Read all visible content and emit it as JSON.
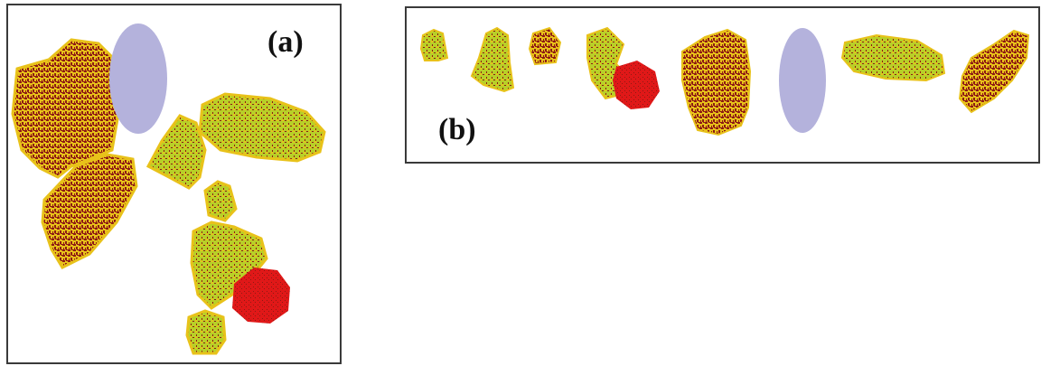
{
  "figure": {
    "panel_a": {
      "label": "(a)"
    },
    "panel_b": {
      "label": "(b)"
    }
  },
  "colors": {
    "yellow": "#e8c21a",
    "dark_red": "#8e1a14",
    "lime": "#b8cf28",
    "lavender": "#b4b2dc",
    "red": "#e01818",
    "border": "#3a3a3a"
  }
}
